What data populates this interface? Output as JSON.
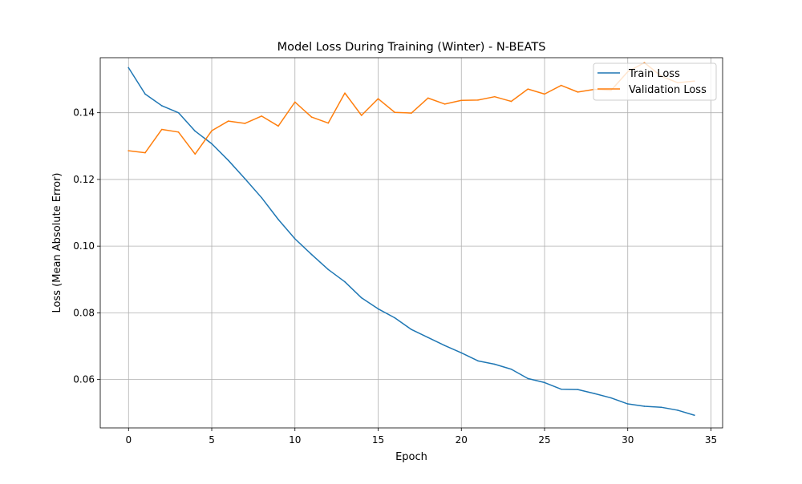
{
  "chart_data": {
    "type": "line",
    "title": "Model Loss During Training (Winter) - N-BEATS",
    "xlabel": "Epoch",
    "ylabel": "Loss (Mean Absolute Error)",
    "xlim": [
      -1.7,
      35.7
    ],
    "ylim": [
      0.0455,
      0.1565
    ],
    "xticks": [
      0,
      5,
      10,
      15,
      20,
      25,
      30,
      35
    ],
    "yticks": [
      0.06,
      0.08,
      0.1,
      0.12,
      0.14
    ],
    "ytick_labels": [
      "0.06",
      "0.08",
      "0.10",
      "0.12",
      "0.14"
    ],
    "grid": true,
    "legend_position": "upper right",
    "x": [
      0,
      1,
      2,
      3,
      4,
      5,
      6,
      7,
      8,
      9,
      10,
      11,
      12,
      13,
      14,
      15,
      16,
      17,
      18,
      19,
      20,
      21,
      22,
      23,
      24,
      25,
      26,
      27,
      28,
      29,
      30,
      31,
      32,
      33,
      34
    ],
    "series": [
      {
        "name": "Train Loss",
        "color": "#1f77b4",
        "values": [
          0.1535,
          0.1456,
          0.1421,
          0.14,
          0.1345,
          0.1307,
          0.1257,
          0.1202,
          0.1145,
          0.108,
          0.1022,
          0.0975,
          0.093,
          0.0893,
          0.0845,
          0.0812,
          0.0785,
          0.075,
          0.0726,
          0.0702,
          0.068,
          0.0656,
          0.0646,
          0.0631,
          0.0603,
          0.0591,
          0.0571,
          0.057,
          0.0558,
          0.0545,
          0.0527,
          0.052,
          0.0517,
          0.0508,
          0.0493
        ]
      },
      {
        "name": "Validation Loss",
        "color": "#ff7f0e",
        "values": [
          0.1286,
          0.128,
          0.135,
          0.1342,
          0.1276,
          0.1346,
          0.1375,
          0.1368,
          0.139,
          0.136,
          0.1432,
          0.1387,
          0.1369,
          0.1459,
          0.1392,
          0.1442,
          0.1401,
          0.1399,
          0.1444,
          0.1426,
          0.1437,
          0.1438,
          0.1448,
          0.1434,
          0.1471,
          0.1456,
          0.1482,
          0.1462,
          0.147,
          0.1467,
          0.1523,
          0.155,
          0.151,
          0.149,
          0.1495
        ]
      }
    ]
  }
}
